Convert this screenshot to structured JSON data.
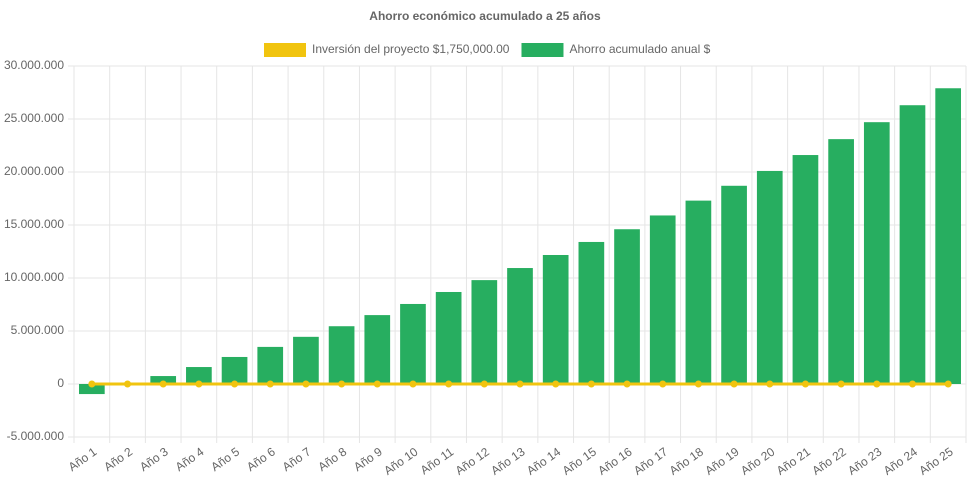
{
  "chart_data": {
    "type": "bar",
    "title": "Ahorro económico acumulado a 25 años",
    "categories": [
      "Año 1",
      "Año 2",
      "Año 3",
      "Año 4",
      "Año 5",
      "Año 6",
      "Año 7",
      "Año 8",
      "Año 9",
      "Año 10",
      "Año 11",
      "Año 12",
      "Año 13",
      "Año 14",
      "Año 15",
      "Año 16",
      "Año 17",
      "Año 18",
      "Año 19",
      "Año 20",
      "Año 21",
      "Año 22",
      "Año 23",
      "Año 24",
      "Año 25"
    ],
    "series": [
      {
        "name": "Inversión del proyecto $1,750,000.00",
        "type": "line",
        "color": "#f1c40f",
        "values": [
          0,
          0,
          0,
          0,
          0,
          0,
          0,
          0,
          0,
          0,
          0,
          0,
          0,
          0,
          0,
          0,
          0,
          0,
          0,
          0,
          0,
          0,
          0,
          0,
          0
        ]
      },
      {
        "name": "Ahorro acumulado anual $",
        "type": "bar",
        "color": "#27ae60",
        "values": [
          -950000,
          0,
          750000,
          1600000,
          2550000,
          3500000,
          4450000,
          5450000,
          6500000,
          7550000,
          8680000,
          9800000,
          10940000,
          12170000,
          13400000,
          14600000,
          15900000,
          17300000,
          18700000,
          20100000,
          21600000,
          23100000,
          24700000,
          26300000,
          27900000
        ]
      }
    ],
    "ylim": [
      -5000000,
      30000000
    ],
    "yticks": [
      {
        "value": -5000000,
        "label": "-5.000.000"
      },
      0,
      {
        "value": 5000000,
        "label": "5.000.000"
      },
      {
        "value": 10000000,
        "label": "10.000.000"
      },
      {
        "value": 15000000,
        "label": "15.000.000"
      },
      {
        "value": 20000000,
        "label": "20.000.000"
      },
      {
        "value": 25000000,
        "label": "25.000.000"
      },
      {
        "value": 30000000,
        "label": "30.000.000"
      }
    ],
    "grid": true
  }
}
